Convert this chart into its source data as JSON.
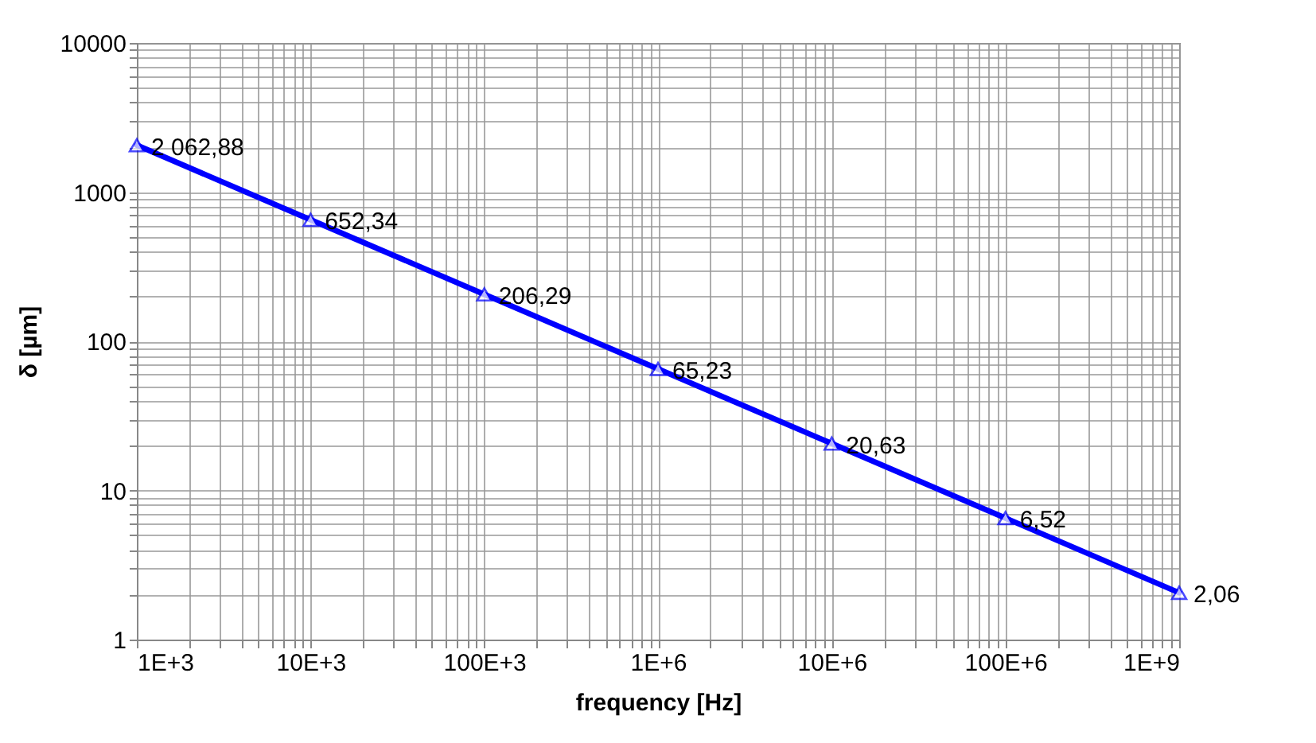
{
  "chart_data": {
    "type": "line",
    "xlabel": "frequency [Hz]",
    "ylabel": "δ [µm]",
    "x": [
      1000,
      10000,
      100000,
      1000000,
      10000000,
      100000000,
      1000000000
    ],
    "series": [
      {
        "color": "#0000ff",
        "values": [
          2062.88,
          652.34,
          206.29,
          65.23,
          20.63,
          6.52,
          2.06
        ],
        "value_labels": [
          "2 062,88",
          "652,34",
          "206,29",
          "65,23",
          "20,63",
          "6,52",
          "2,06"
        ]
      }
    ],
    "log": "xy",
    "xlim": [
      1000,
      1000000000
    ],
    "xticks": [
      {
        "value": 1000,
        "label": "1E+3"
      },
      {
        "value": 10000,
        "label": "10E+3"
      },
      {
        "value": 100000,
        "label": "100E+3"
      },
      {
        "value": 1000000,
        "label": "1E+6"
      },
      {
        "value": 10000000,
        "label": "10E+6"
      },
      {
        "value": 100000000,
        "label": "100E+6"
      },
      {
        "value": 1000000000,
        "label": "1E+9"
      }
    ],
    "ylim": [
      1,
      10000
    ],
    "yticks": [
      1,
      10,
      100,
      1000,
      10000
    ],
    "grid": true,
    "marker": "triangle",
    "line_style": "solid"
  }
}
